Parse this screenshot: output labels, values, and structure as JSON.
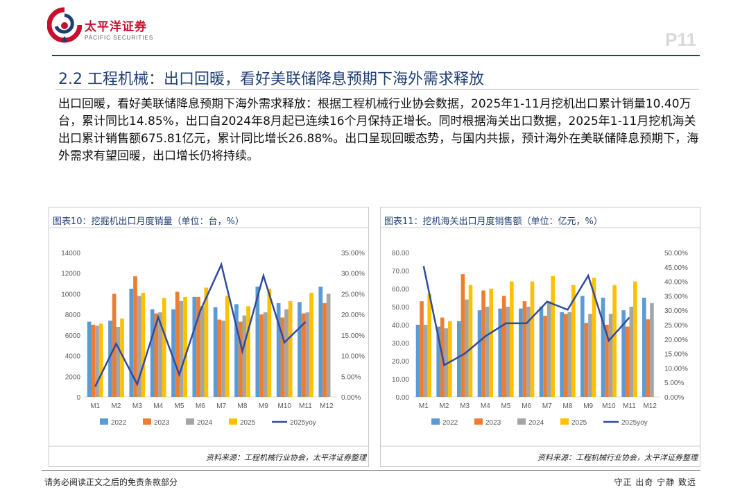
{
  "header": {
    "logo_cn": "太平洋证券",
    "logo_en": "PACIFIC SECURITIES",
    "page_number": "P11"
  },
  "section_title": "2.2 工程机械：出口回暖，看好美联储降息预期下海外需求释放",
  "body_text": "出口回暖，看好美联储降息预期下海外需求释放：根据工程机械行业协会数据，2025年1-11月挖机出口累计销量10.40万台，累计同比14.85%，出口自2024年8月起已连续16个月保持正增长。同时根据海关出口数据，2025年1-11月挖机海关出口累计销售额675.81亿元，累计同比增长26.88%。出口呈现回暖态势，与国内共振，预计海外在美联储降息预期下，海外需求有望回暖，出口增长仍将持续。",
  "colors": {
    "2022": "#5b9bd5",
    "2023": "#ed7d31",
    "2024": "#a5a5a5",
    "2025": "#ffc000",
    "yoy": "#2f4b9c",
    "title": "#1f3f73"
  },
  "chart_data": [
    {
      "type": "bar",
      "title": "图表10：挖掘机出口月度销量（单位：台，%）",
      "source": "资料来源：工程机械行业协会，太平洋证券整理",
      "categories": [
        "M1",
        "M2",
        "M3",
        "M4",
        "M5",
        "M6",
        "M7",
        "M8",
        "M9",
        "M10",
        "M11",
        "M12"
      ],
      "series": [
        {
          "name": "2022",
          "values": [
            7300,
            7400,
            10500,
            8500,
            8500,
            9700,
            8700,
            9000,
            10700,
            9100,
            9200,
            10700
          ]
        },
        {
          "name": "2023",
          "values": [
            7000,
            10000,
            11700,
            8100,
            10200,
            9700,
            7500,
            7300,
            8000,
            7700,
            8100,
            9100
          ]
        },
        {
          "name": "2024",
          "values": [
            6900,
            6800,
            9800,
            8200,
            9300,
            8800,
            7400,
            7900,
            8200,
            8500,
            8200,
            10000
          ]
        },
        {
          "name": "2025",
          "values": [
            7100,
            7600,
            10100,
            9600,
            9700,
            10600,
            9800,
            8800,
            10500,
            9300,
            10100,
            null
          ]
        }
      ],
      "line": {
        "name": "2025yoy",
        "values": [
          0.025,
          0.129,
          0.031,
          0.193,
          0.054,
          0.209,
          0.321,
          0.111,
          0.294,
          0.132,
          0.182,
          null
        ]
      },
      "yaxis_left": {
        "min": 0,
        "max": 14000,
        "step": 2000,
        "ticks": [
          "0",
          "2000",
          "4000",
          "6000",
          "8000",
          "10000",
          "12000",
          "14000"
        ]
      },
      "yaxis_right": {
        "min": 0,
        "max": 0.35,
        "step": 0.05,
        "ticks": [
          "0.00%",
          "5.00%",
          "10.00%",
          "15.00%",
          "20.00%",
          "25.00%",
          "30.00%",
          "35.00%"
        ]
      },
      "legend": [
        "2022",
        "2023",
        "2024",
        "2025",
        "2025yoy"
      ]
    },
    {
      "type": "bar",
      "title": "图表11：挖机海关出口月度销售额（单位：亿元，%）",
      "source": "资料来源：工程机械行业协会，太平洋证券整理",
      "categories": [
        "M1",
        "M2",
        "M3",
        "M4",
        "M5",
        "M6",
        "M7",
        "M8",
        "M9",
        "M10",
        "M11",
        "M12"
      ],
      "series": [
        {
          "name": "2022",
          "values": [
            40,
            39,
            42,
            48,
            49,
            49,
            50,
            47,
            56,
            55,
            48,
            55
          ]
        },
        {
          "name": "2023",
          "values": [
            53,
            44,
            68,
            59,
            56,
            53,
            45,
            46,
            41,
            40,
            39,
            43
          ]
        },
        {
          "name": "2024",
          "values": [
            40,
            38,
            54,
            50,
            50,
            50,
            53,
            47,
            46,
            46,
            50,
            52
          ]
        },
        {
          "name": "2025",
          "values": [
            57,
            42,
            62,
            60,
            64,
            64,
            67,
            62,
            66,
            62,
            64,
            null
          ]
        }
      ],
      "line": {
        "name": "2025yoy",
        "values": [
          0.453,
          0.11,
          0.15,
          0.21,
          0.255,
          0.255,
          0.33,
          0.302,
          0.42,
          0.195,
          0.275,
          null
        ]
      },
      "yaxis_left": {
        "min": 0,
        "max": 80,
        "step": 10,
        "ticks": [
          "0.00",
          "10.00",
          "20.00",
          "30.00",
          "40.00",
          "50.00",
          "60.00",
          "70.00",
          "80.00"
        ]
      },
      "yaxis_right": {
        "min": 0,
        "max": 0.5,
        "step": 0.05,
        "ticks": [
          "0.00%",
          "5.00%",
          "10.00%",
          "15.00%",
          "20.00%",
          "25.00%",
          "30.00%",
          "35.00%",
          "40.00%",
          "45.00%",
          "50.00%"
        ]
      },
      "legend": [
        "2022",
        "2023",
        "2024",
        "2025",
        "2025yoy"
      ]
    }
  ],
  "footer": {
    "disclaimer": "请务必阅读正文之后的免责条款部分",
    "motto": "守正 出奇 宁静 致远"
  }
}
